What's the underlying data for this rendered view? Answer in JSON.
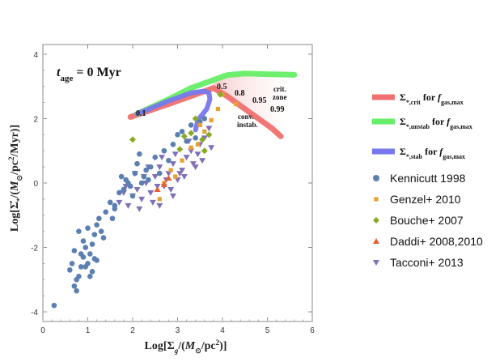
{
  "chart_data": {
    "type": "scatter",
    "xlabel": "Log[Σ_g/(M_⊙/pc²)]",
    "ylabel": "Log[Σ̇_*/(M_⊙/pc²/Myr)]",
    "xlim": [
      0,
      6
    ],
    "ylim": [
      -4.3,
      4.3
    ],
    "xticks": [
      "0",
      "1",
      "2",
      "3",
      "4",
      "5",
      "6"
    ],
    "yticks": [
      "-4",
      "-2",
      "0",
      "2",
      "4"
    ],
    "panel_label": "t_age = 0 Myr",
    "annotations": {
      "fgas_values": [
        "0.1",
        "0.5",
        "0.8",
        "0.95",
        "0.99"
      ],
      "crit_zone": "crit. zone",
      "conv_instab": "conv. instab."
    },
    "curves": [
      {
        "name": "Σ*,crit for fgas,max",
        "color": "#f07070",
        "x": [
          1.95,
          2.8,
          3.5,
          3.8,
          4.1,
          4.5,
          4.9,
          5.1,
          5.3
        ],
        "y": [
          2.05,
          2.45,
          2.8,
          2.95,
          2.7,
          2.3,
          1.9,
          1.7,
          1.45
        ]
      },
      {
        "name": "Σ*,unstab for fgas,max",
        "color": "#66ee66",
        "x": [
          2.1,
          2.8,
          3.3,
          3.6,
          3.8,
          4.1,
          4.5,
          5.0,
          5.6
        ],
        "y": [
          2.15,
          2.6,
          2.95,
          3.1,
          3.2,
          3.35,
          3.4,
          3.38,
          3.36
        ]
      },
      {
        "name": "Σ*,stab for fgas,max",
        "color": "#7777ee",
        "x": [
          2.1,
          2.8,
          3.3,
          3.6,
          3.7,
          3.72,
          3.65,
          3.45,
          3.4
        ],
        "y": [
          2.15,
          2.55,
          2.8,
          2.85,
          2.8,
          2.6,
          2.3,
          1.95,
          1.65
        ]
      }
    ],
    "series": [
      {
        "name": "Kennicutt 1998",
        "marker": "circle",
        "color": "#5a7fb0",
        "x": [
          0.25,
          0.6,
          0.65,
          0.7,
          0.75,
          0.8,
          0.85,
          0.9,
          0.95,
          1.0,
          1.05,
          1.1,
          1.15,
          1.2,
          1.0,
          0.9,
          0.8,
          0.7,
          1.1,
          1.25,
          1.3,
          1.4,
          1.5,
          1.55,
          1.6,
          1.7,
          1.75,
          1.8,
          1.9,
          2.0,
          2.05,
          2.1,
          2.2,
          2.3,
          1.6,
          1.85,
          1.95,
          2.25,
          2.4,
          2.5,
          2.6,
          2.7,
          2.8,
          2.9,
          3.0,
          3.1,
          3.2,
          3.3,
          3.4,
          3.5,
          3.6,
          1.05,
          0.95,
          1.2,
          1.35,
          0.85,
          0.75,
          1.15,
          2.15,
          2.35
        ],
        "y": [
          -3.8,
          -2.7,
          -2.5,
          -3.2,
          -3.35,
          -2.9,
          -2.6,
          -2.3,
          -2.0,
          -2.5,
          -2.2,
          -2.75,
          -2.35,
          -2.4,
          -1.4,
          -1.8,
          -1.5,
          -2.1,
          -1.9,
          -1.1,
          -1.5,
          -0.9,
          -0.6,
          -1.1,
          -0.8,
          -0.3,
          0.2,
          -0.2,
          0.0,
          -0.4,
          0.3,
          0.6,
          0.0,
          0.4,
          -0.7,
          0.1,
          -0.1,
          0.2,
          0.5,
          0.8,
          0.3,
          1.0,
          0.7,
          1.2,
          1.5,
          1.6,
          1.3,
          1.8,
          1.4,
          1.9,
          2.0,
          -2.9,
          -2.6,
          -1.3,
          -1.7,
          -2.2,
          -3.0,
          -1.6,
          0.9,
          0.1
        ]
      },
      {
        "name": "Genzel+ 2010",
        "marker": "square",
        "color": "#e8a030",
        "x": [
          2.6,
          2.7,
          2.85,
          2.95,
          3.1,
          3.3,
          3.45,
          3.6,
          3.75,
          3.9,
          4.0,
          4.3,
          3.5
        ],
        "y": [
          -0.5,
          0.0,
          0.4,
          0.2,
          0.7,
          1.1,
          1.2,
          1.6,
          1.95,
          2.3,
          2.75,
          2.45,
          1.8
        ]
      },
      {
        "name": "Bouche+ 2007",
        "marker": "diamond",
        "color": "#88aa22",
        "x": [
          2.0,
          3.05,
          3.15,
          3.3,
          3.4,
          3.55,
          3.6,
          3.95,
          3.7
        ],
        "y": [
          1.35,
          1.05,
          1.45,
          1.55,
          2.0,
          1.35,
          1.0,
          2.75,
          1.5
        ]
      },
      {
        "name": "Daddi+ 2008,2010",
        "marker": "triangle-up",
        "color": "#e86030",
        "x": [
          2.55,
          2.7,
          2.8
        ],
        "y": [
          -0.2,
          -0.05,
          0.15
        ]
      },
      {
        "name": "Tacconi+ 2013",
        "marker": "triangle-down",
        "color": "#8070b8",
        "x": [
          1.7,
          1.8,
          1.9,
          2.0,
          2.1,
          2.2,
          2.3,
          2.4,
          2.5,
          2.6,
          2.7,
          2.8,
          2.9,
          3.0,
          3.1,
          3.2,
          3.3,
          3.4,
          3.5,
          3.6,
          3.7,
          2.25,
          2.45,
          2.65,
          2.85,
          3.05,
          3.25,
          3.45,
          2.15,
          2.35,
          2.55,
          2.75,
          2.95,
          3.15,
          3.35,
          1.85,
          2.05,
          3.55,
          3.75,
          2.6,
          2.9
        ],
        "y": [
          -0.6,
          -0.3,
          -0.7,
          -0.4,
          -0.2,
          -0.5,
          0.0,
          -0.3,
          0.2,
          0.5,
          -0.1,
          0.3,
          0.6,
          0.1,
          0.4,
          0.8,
          1.0,
          0.5,
          1.2,
          1.4,
          1.7,
          0.2,
          -0.6,
          0.8,
          -0.2,
          0.3,
          1.3,
          0.9,
          -0.8,
          0.5,
          -0.1,
          0.1,
          0.9,
          0.2,
          0.6,
          -0.1,
          0.3,
          0.7,
          1.1,
          -0.7,
          -0.4
        ]
      }
    ],
    "legend": {
      "placement": "right",
      "curve_entries": [
        {
          "color": "#f07070",
          "sym": "Σ",
          "sub": "*,crit",
          "mid": " for ",
          "f": "f",
          "fsub": "gas,max"
        },
        {
          "color": "#66ee66",
          "sym": "Σ",
          "sub": "*,unstab",
          "mid": " for ",
          "f": "f",
          "fsub": "gas,max"
        },
        {
          "color": "#7777ee",
          "sym": "Σ",
          "sub": "*,stab",
          "mid": " for ",
          "f": "f",
          "fsub": "gas,max"
        }
      ]
    }
  }
}
